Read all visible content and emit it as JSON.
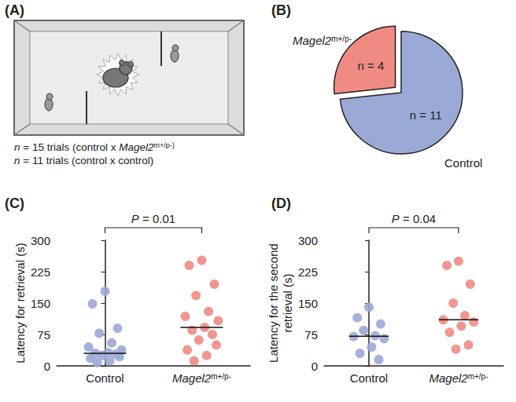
{
  "diagram": {
    "panel": "(A)",
    "notes": [
      "n = 15 trials (control x Magel2 m+/p-)",
      "n = 11 trials (control x control)"
    ]
  },
  "chart_data": [
    {
      "panel": "(B)",
      "type": "pie",
      "categories": [
        "Control",
        "Magel2 m+/p-"
      ],
      "values": [
        11,
        4
      ],
      "value_labels": [
        "n = 11",
        "n = 4"
      ],
      "colors": [
        "#9ba9d6",
        "#f08b84"
      ],
      "data_labels": true
    },
    {
      "panel": "(C)",
      "type": "scatter",
      "categories": [
        "Control",
        "Magel2 m+/p-"
      ],
      "values": [
        [
          178,
          148,
          90,
          78,
          55,
          45,
          38,
          32,
          30,
          28,
          25,
          22,
          18,
          12,
          8
        ],
        [
          252,
          240,
          195,
          168,
          130,
          118,
          108,
          92,
          85,
          75,
          62,
          50,
          38,
          25,
          12
        ]
      ],
      "medians": [
        30,
        92
      ],
      "colors": [
        "#9ba9d6",
        "#f08b84"
      ],
      "marker": "circle",
      "ylabel": "Latency for retrieval (s)",
      "ylim": [
        0,
        300
      ],
      "yticks": [
        0,
        75,
        150,
        225,
        300
      ],
      "annotations": [
        "P = 0.01"
      ],
      "grid": false
    },
    {
      "panel": "(D)",
      "type": "scatter",
      "categories": [
        "Control",
        "Magel2 m+/p-"
      ],
      "values": [
        [
          140,
          115,
          100,
          85,
          72,
          70,
          65,
          45,
          30,
          15
        ],
        [
          250,
          240,
          195,
          150,
          120,
          110,
          105,
          95,
          80,
          50,
          40
        ]
      ],
      "medians": [
        71,
        110
      ],
      "colors": [
        "#9ba9d6",
        "#f08b84"
      ],
      "marker": "circle",
      "ylabel": "Latency for the second retrieval (s)",
      "ylim": [
        0,
        300
      ],
      "yticks": [
        0,
        75,
        150,
        225,
        300
      ],
      "annotations": [
        "P = 0.04"
      ],
      "grid": false
    }
  ]
}
